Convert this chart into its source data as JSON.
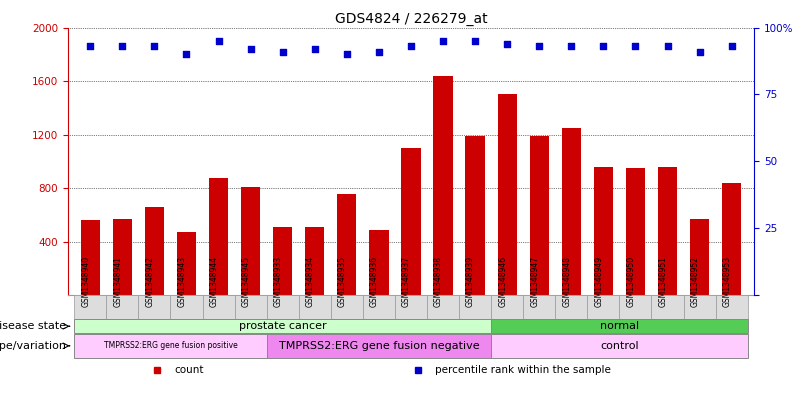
{
  "title": "GDS4824 / 226279_at",
  "samples": [
    "GSM1348940",
    "GSM1348941",
    "GSM1348942",
    "GSM1348943",
    "GSM1348944",
    "GSM1348945",
    "GSM1348933",
    "GSM1348934",
    "GSM1348935",
    "GSM1348936",
    "GSM1348937",
    "GSM1348938",
    "GSM1348939",
    "GSM1348946",
    "GSM1348947",
    "GSM1348948",
    "GSM1348949",
    "GSM1348950",
    "GSM1348951",
    "GSM1348952",
    "GSM1348953"
  ],
  "counts": [
    560,
    570,
    660,
    470,
    880,
    810,
    510,
    510,
    760,
    490,
    1100,
    1640,
    1190,
    1500,
    1190,
    1250,
    960,
    950,
    960,
    570,
    840
  ],
  "percentiles": [
    93,
    93,
    93,
    90,
    95,
    92,
    91,
    92,
    90,
    91,
    93,
    95,
    95,
    94,
    93,
    93,
    93,
    93,
    93,
    91,
    93
  ],
  "bar_color": "#cc0000",
  "dot_color": "#0000cc",
  "ylim_left": [
    0,
    2000
  ],
  "ylim_right": [
    0,
    100
  ],
  "yticks_left": [
    400,
    800,
    1200,
    1600,
    2000
  ],
  "yticks_right": [
    0,
    25,
    50,
    75,
    100
  ],
  "disease_state_groups": [
    {
      "label": "prostate cancer",
      "start": 0,
      "end": 13,
      "color": "#ccffcc"
    },
    {
      "label": "normal",
      "start": 13,
      "end": 21,
      "color": "#55cc55"
    }
  ],
  "genotype_groups": [
    {
      "label": "TMPRSS2:ERG gene fusion positive",
      "start": 0,
      "end": 6,
      "color": "#ffccff"
    },
    {
      "label": "TMPRSS2:ERG gene fusion negative",
      "start": 6,
      "end": 13,
      "color": "#ee88ee"
    },
    {
      "label": "control",
      "start": 13,
      "end": 21,
      "color": "#ffccff"
    }
  ],
  "legend_items": [
    {
      "color": "#cc0000",
      "marker": "s",
      "label": "count"
    },
    {
      "color": "#0000cc",
      "marker": "s",
      "label": "percentile rank within the sample"
    }
  ],
  "disease_label": "disease state",
  "genotype_label": "genotype/variation",
  "left_axis_color": "#cc0000",
  "right_axis_color": "#0000cc",
  "grid_color": "#000000",
  "background_color": "#ffffff",
  "title_fontsize": 10,
  "tick_fontsize": 7.5,
  "label_fontsize": 8,
  "sample_label_fontsize": 6.5,
  "annotation_label_fontsize": 8,
  "annotation_text_fontsize": 8
}
